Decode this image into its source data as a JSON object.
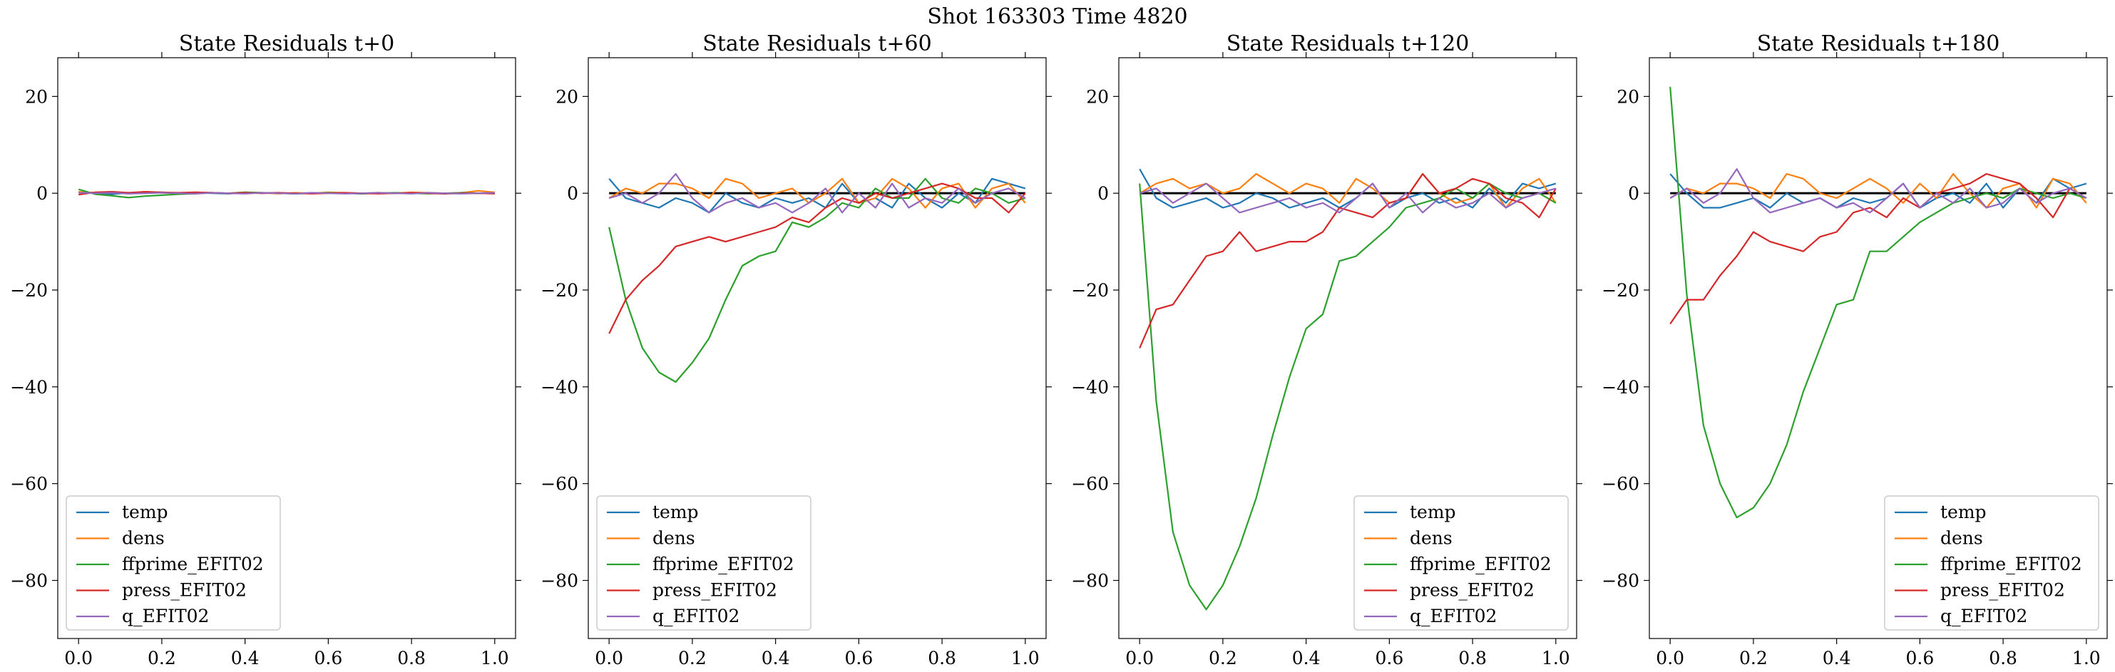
{
  "suptitle": "Shot 163303   Time 4820",
  "colors": {
    "temp": "#1f77b4",
    "dens": "#ff7f0e",
    "ffprime_EFIT02": "#2ca02c",
    "press_EFIT02": "#d62728",
    "q_EFIT02": "#9467bd",
    "zero_line": "#000000"
  },
  "chart_data": [
    {
      "type": "line",
      "title": "State Residuals t+0",
      "xlim": [
        -0.05,
        1.05
      ],
      "ylim": [
        -92,
        28
      ],
      "xticks": [
        "0.0",
        "0.2",
        "0.4",
        "0.6",
        "0.8",
        "1.0"
      ],
      "yticks": [
        "20",
        "0",
        "−20",
        "−40",
        "−60",
        "−80"
      ],
      "legend_position": "lower-left",
      "zero_line": false,
      "x": [
        0.0,
        0.04,
        0.08,
        0.12,
        0.16,
        0.2,
        0.24,
        0.28,
        0.32,
        0.36,
        0.4,
        0.44,
        0.48,
        0.52,
        0.56,
        0.6,
        0.64,
        0.68,
        0.72,
        0.76,
        0.8,
        0.84,
        0.88,
        0.92,
        0.96,
        1.0
      ],
      "series": [
        {
          "name": "temp",
          "values": [
            0.2,
            0.1,
            -0.2,
            0.1,
            0.0,
            0.2,
            -0.1,
            0.1,
            0.0,
            -0.1,
            0.1,
            0.0,
            0.1,
            -0.1,
            0.0,
            0.1,
            0.0,
            -0.1,
            0.1,
            0.0,
            0.1,
            0.0,
            -0.1,
            0.1,
            0.0,
            0.1
          ]
        },
        {
          "name": "dens",
          "values": [
            0.3,
            0.1,
            0.2,
            0.0,
            0.3,
            0.1,
            0.0,
            0.2,
            0.1,
            0.0,
            0.2,
            0.1,
            -0.1,
            0.1,
            0.0,
            0.2,
            0.1,
            0.0,
            0.1,
            0.0,
            0.2,
            0.1,
            0.0,
            0.1,
            0.5,
            0.2
          ]
        },
        {
          "name": "ffprime_EFIT02",
          "values": [
            0.8,
            -0.2,
            -0.5,
            -0.9,
            -0.6,
            -0.4,
            -0.2,
            -0.1,
            0.1,
            0.0,
            0.2,
            0.1,
            0.0,
            -0.1,
            0.0,
            0.1,
            0.0,
            -0.1,
            0.0,
            0.1,
            0.0,
            -0.1,
            0.0,
            0.1,
            0.0,
            0.0
          ]
        },
        {
          "name": "press_EFIT02",
          "values": [
            -0.3,
            0.2,
            0.3,
            0.1,
            0.3,
            0.2,
            0.1,
            0.2,
            0.1,
            0.0,
            0.1,
            0.0,
            0.1,
            0.0,
            -0.1,
            0.0,
            0.1,
            0.0,
            -0.1,
            0.0,
            0.1,
            0.0,
            -0.1,
            0.0,
            0.0,
            -0.1
          ]
        },
        {
          "name": "q_EFIT02",
          "values": [
            0.1,
            0.0,
            0.1,
            -0.1,
            0.0,
            0.1,
            0.0,
            -0.1,
            0.1,
            0.0,
            -0.1,
            0.1,
            0.0,
            -0.1,
            0.1,
            0.0,
            -0.1,
            0.0,
            0.1,
            0.0,
            -0.1,
            0.1,
            0.0,
            -0.1,
            0.0,
            0.1
          ]
        }
      ]
    },
    {
      "type": "line",
      "title": "State Residuals t+60",
      "xlim": [
        -0.05,
        1.05
      ],
      "ylim": [
        -92,
        28
      ],
      "xticks": [
        "0.0",
        "0.2",
        "0.4",
        "0.6",
        "0.8",
        "1.0"
      ],
      "yticks": [
        "20",
        "0",
        "−20",
        "−40",
        "−60",
        "−80"
      ],
      "legend_position": "lower-left",
      "zero_line": true,
      "x": [
        0.0,
        0.04,
        0.08,
        0.12,
        0.16,
        0.2,
        0.24,
        0.28,
        0.32,
        0.36,
        0.4,
        0.44,
        0.48,
        0.52,
        0.56,
        0.6,
        0.64,
        0.68,
        0.72,
        0.76,
        0.8,
        0.84,
        0.88,
        0.92,
        0.96,
        1.0
      ],
      "series": [
        {
          "name": "temp",
          "values": [
            3,
            -1,
            -2,
            -3,
            -1,
            -2,
            -4,
            0,
            -2,
            -3,
            -1,
            -2,
            -1,
            -3,
            2,
            -2,
            -1,
            -3,
            2,
            -1,
            -3,
            0,
            -2,
            3,
            2,
            1
          ]
        },
        {
          "name": "dens",
          "values": [
            -1,
            1,
            0,
            2,
            2,
            1,
            -1,
            3,
            2,
            -1,
            0,
            1,
            -2,
            0,
            3,
            -2,
            -1,
            3,
            1,
            -3,
            1,
            2,
            -3,
            1,
            2,
            -2
          ]
        },
        {
          "name": "ffprime_EFIT02",
          "values": [
            -7,
            -22,
            -32,
            -37,
            -39,
            -35,
            -30,
            -22,
            -15,
            -13,
            -12,
            -6,
            -7,
            -5,
            -2,
            -3,
            1,
            -1,
            -1,
            3,
            -1,
            -2,
            1,
            0,
            -2,
            -1
          ]
        },
        {
          "name": "press_EFIT02",
          "values": [
            -29,
            -22,
            -18,
            -15,
            -11,
            -10,
            -9,
            -10,
            -9,
            -8,
            -7,
            -5,
            -6,
            -3,
            -1,
            -2,
            0,
            -1,
            0,
            1,
            2,
            1,
            -1,
            -1,
            -4,
            0
          ]
        },
        {
          "name": "q_EFIT02",
          "values": [
            -1,
            0,
            -2,
            0,
            4,
            -1,
            -4,
            -2,
            -1,
            -3,
            -2,
            -4,
            -2,
            1,
            -4,
            0,
            -3,
            2,
            -3,
            -1,
            -2,
            1,
            -2,
            0,
            1,
            -1
          ]
        }
      ]
    },
    {
      "type": "line",
      "title": "State Residuals t+120",
      "xlim": [
        -0.05,
        1.05
      ],
      "ylim": [
        -92,
        28
      ],
      "xticks": [
        "0.0",
        "0.2",
        "0.4",
        "0.6",
        "0.8",
        "1.0"
      ],
      "yticks": [
        "20",
        "0",
        "−20",
        "−40",
        "−60",
        "−80"
      ],
      "legend_position": "lower-right",
      "zero_line": true,
      "x": [
        0.0,
        0.04,
        0.08,
        0.12,
        0.16,
        0.2,
        0.24,
        0.28,
        0.32,
        0.36,
        0.4,
        0.44,
        0.48,
        0.52,
        0.56,
        0.6,
        0.64,
        0.68,
        0.72,
        0.76,
        0.8,
        0.84,
        0.88,
        0.92,
        0.96,
        1.0
      ],
      "series": [
        {
          "name": "temp",
          "values": [
            5,
            -1,
            -3,
            -2,
            -1,
            -3,
            -2,
            0,
            -1,
            -3,
            -2,
            -1,
            -3,
            -1,
            2,
            -3,
            -1,
            0,
            -2,
            -1,
            -3,
            1,
            -2,
            2,
            1,
            2
          ]
        },
        {
          "name": "dens",
          "values": [
            0,
            2,
            3,
            1,
            2,
            0,
            1,
            4,
            2,
            0,
            2,
            1,
            -2,
            3,
            1,
            -2,
            -1,
            4,
            0,
            -2,
            -1,
            2,
            -3,
            1,
            3,
            -2
          ]
        },
        {
          "name": "ffprime_EFIT02",
          "values": [
            2,
            -43,
            -70,
            -81,
            -86,
            -81,
            -73,
            -63,
            -50,
            -38,
            -28,
            -25,
            -14,
            -13,
            -10,
            -7,
            -3,
            -2,
            -1,
            1,
            -1,
            2,
            0,
            -1,
            0,
            -2
          ]
        },
        {
          "name": "press_EFIT02",
          "values": [
            -32,
            -24,
            -23,
            -18,
            -13,
            -12,
            -8,
            -12,
            -11,
            -10,
            -10,
            -8,
            -3,
            -4,
            -5,
            -2,
            -1,
            4,
            0,
            1,
            3,
            2,
            -1,
            -2,
            -5,
            1
          ]
        },
        {
          "name": "q_EFIT02",
          "values": [
            0,
            1,
            -2,
            0,
            2,
            -1,
            -4,
            -3,
            -2,
            -1,
            -3,
            -2,
            -4,
            -1,
            2,
            -3,
            0,
            -4,
            -1,
            -3,
            -2,
            0,
            -3,
            -1,
            0,
            1
          ]
        }
      ]
    },
    {
      "type": "line",
      "title": "State Residuals t+180",
      "xlim": [
        -0.05,
        1.05
      ],
      "ylim": [
        -92,
        28
      ],
      "xticks": [
        "0.0",
        "0.2",
        "0.4",
        "0.6",
        "0.8",
        "1.0"
      ],
      "yticks": [
        "20",
        "0",
        "−20",
        "−40",
        "−60",
        "−80"
      ],
      "legend_position": "lower-right",
      "zero_line": true,
      "x": [
        0.0,
        0.04,
        0.08,
        0.12,
        0.16,
        0.2,
        0.24,
        0.28,
        0.32,
        0.36,
        0.4,
        0.44,
        0.48,
        0.52,
        0.56,
        0.6,
        0.64,
        0.68,
        0.72,
        0.76,
        0.8,
        0.84,
        0.88,
        0.92,
        0.96,
        1.0
      ],
      "series": [
        {
          "name": "temp",
          "values": [
            4,
            0,
            -3,
            -3,
            -2,
            -1,
            -3,
            0,
            -2,
            -1,
            -3,
            -1,
            -2,
            -1,
            2,
            -3,
            -1,
            0,
            -2,
            2,
            -3,
            1,
            -2,
            3,
            1,
            2
          ]
        },
        {
          "name": "dens",
          "values": [
            -1,
            1,
            0,
            2,
            2,
            1,
            -1,
            4,
            3,
            0,
            -1,
            1,
            3,
            1,
            -2,
            2,
            -1,
            4,
            0,
            -3,
            1,
            2,
            -3,
            3,
            2,
            -2
          ]
        },
        {
          "name": "ffprime_EFIT02",
          "values": [
            22,
            -21,
            -48,
            -60,
            -67,
            -65,
            -60,
            -52,
            -41,
            -32,
            -23,
            -22,
            -12,
            -12,
            -9,
            -6,
            -4,
            -2,
            -1,
            0,
            -1,
            1,
            0,
            -1,
            0,
            -1
          ]
        },
        {
          "name": "press_EFIT02",
          "values": [
            -27,
            -22,
            -22,
            -17,
            -13,
            -8,
            -10,
            -11,
            -12,
            -9,
            -8,
            -4,
            -3,
            -5,
            -1,
            -3,
            0,
            1,
            2,
            4,
            3,
            2,
            -1,
            -5,
            1,
            -1
          ]
        },
        {
          "name": "q_EFIT02",
          "values": [
            -1,
            1,
            -2,
            0,
            5,
            -1,
            -4,
            -3,
            -2,
            -1,
            -3,
            -2,
            -4,
            -1,
            2,
            -3,
            0,
            -2,
            1,
            -3,
            -2,
            1,
            -2,
            0,
            1,
            -1
          ]
        }
      ]
    }
  ]
}
